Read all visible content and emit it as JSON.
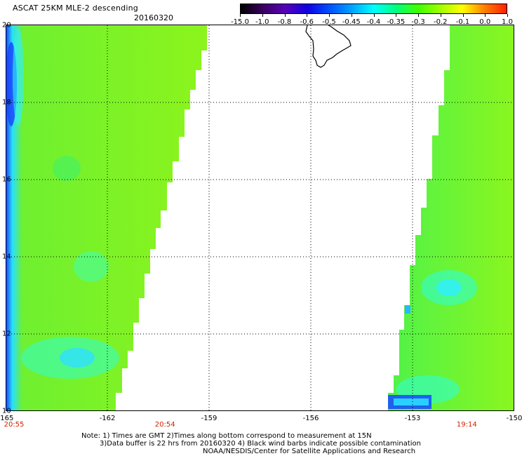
{
  "title": "ASCAT 25KM MLE-2 descending",
  "date": "20160320",
  "colorbar": {
    "labels": [
      "-15.0",
      "-1.0",
      "-0.8",
      "-0.6",
      "-0.5",
      "-0.45",
      "-0.4",
      "-0.35",
      "-0.3",
      "-0.2",
      "-0.1",
      "0.0",
      "1.0"
    ],
    "colors": [
      "#000000",
      "#3a0060",
      "#5800b8",
      "#1000e0",
      "#0050ff",
      "#00a0ff",
      "#00ffff",
      "#00ff80",
      "#40ff00",
      "#a0ff00",
      "#ffff00",
      "#ff8000",
      "#ff2000"
    ]
  },
  "map": {
    "lat_labels": [
      "20",
      "18",
      "16",
      "14",
      "12",
      "10"
    ],
    "lon_labels": [
      "-165",
      "-162",
      "-159",
      "-156",
      "-153",
      "-150"
    ],
    "lat_range": [
      10,
      20
    ],
    "lon_range": [
      -165,
      -150
    ],
    "time_labels": [
      "20:55",
      "20:54",
      "19:14"
    ],
    "swath_color": "#7cf21a",
    "land_outline_color": "#000000"
  },
  "notes": {
    "line1": "Note: 1) Times are GMT 2)Times along bottom correspond to measurement at 15N",
    "line2": "3)Data buffer is 22 hrs from 20160320 4) Black wind barbs indicate possible contamination",
    "line3": "NOAA/NESDIS/Center for Satellite Applications and Research"
  }
}
